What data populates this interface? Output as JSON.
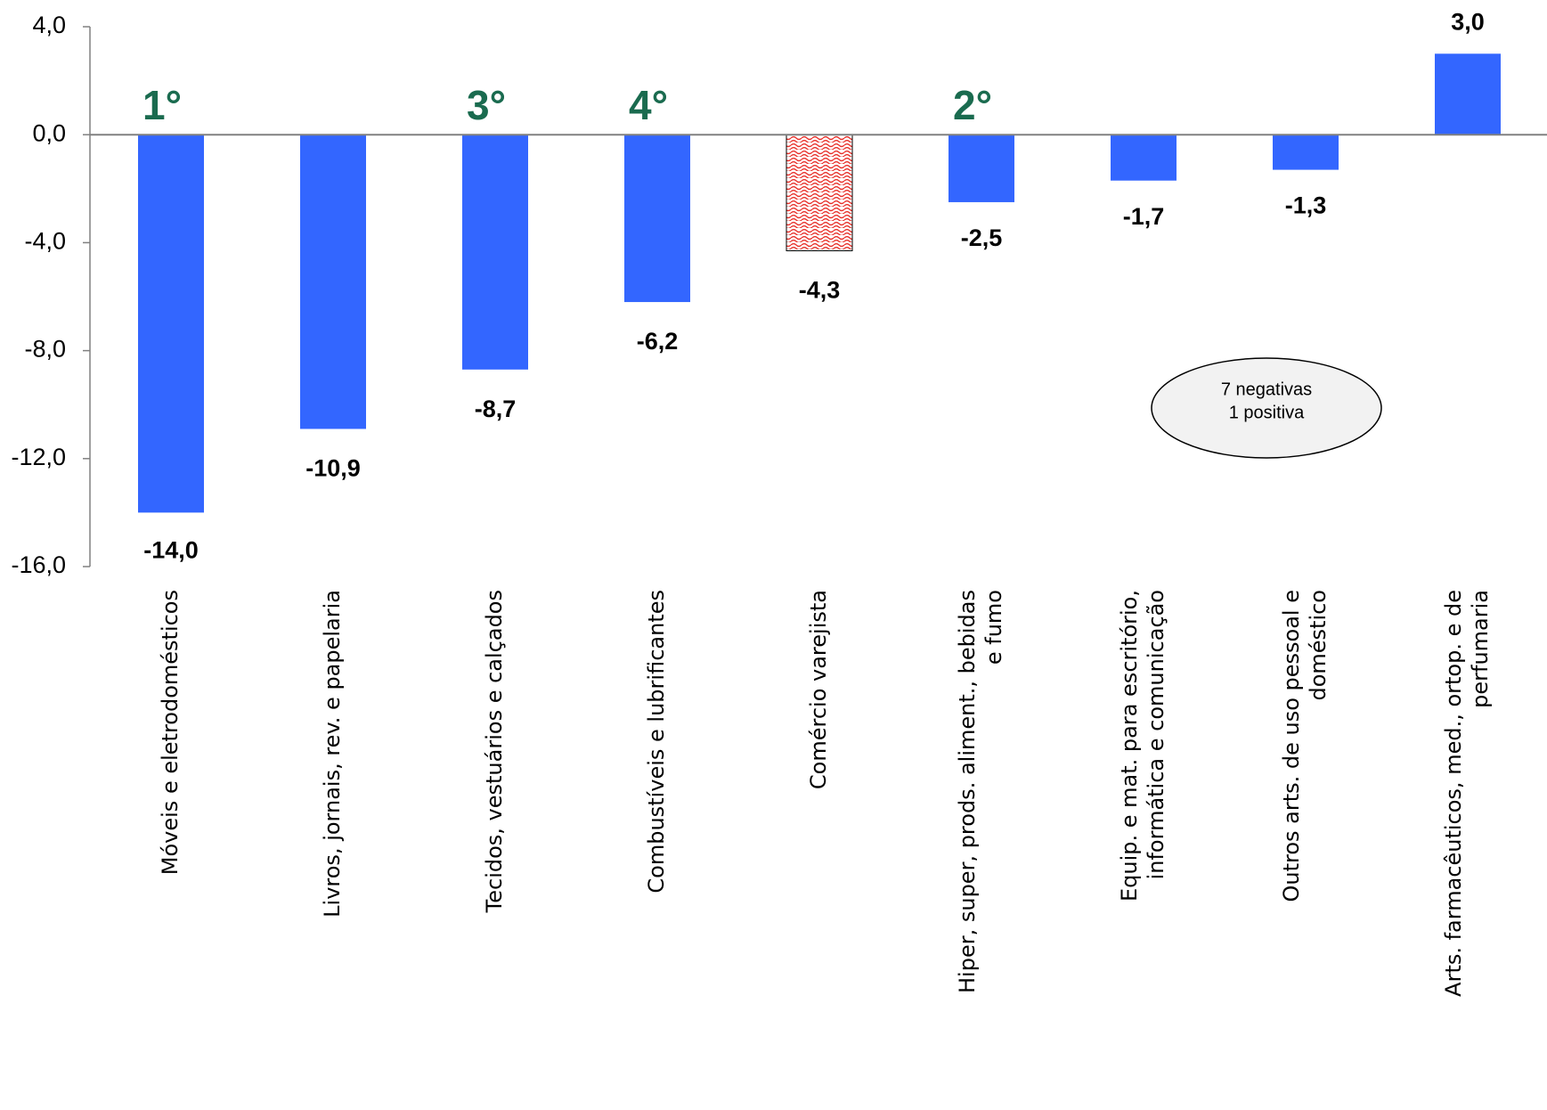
{
  "chart_data": {
    "type": "bar",
    "categories": [
      "Móveis e eletrodomésticos",
      "Livros, jornais, rev. e papelaria",
      "Tecidos, vestuários e calçados",
      "Combustíveis e lubrificantes",
      "Comércio varejista",
      "Hiper, super, prods. aliment., bebidas e fumo",
      "Equip. e mat. para escritório, informática e comunicação",
      "Outros arts. de uso pessoal e doméstico",
      "Arts. farmacêuticos, med., ortop. e de perfumaria"
    ],
    "category_lines": [
      [
        "Móveis e eletrodomésticos"
      ],
      [
        "Livros, jornais, rev. e papelaria"
      ],
      [
        "Tecidos, vestuários e calçados"
      ],
      [
        "Combustíveis e lubrificantes"
      ],
      [
        "Comércio varejista"
      ],
      [
        "Hiper, super, prods. aliment., bebidas",
        "e fumo"
      ],
      [
        "Equip. e mat. para escritório,",
        "informática e comunicação"
      ],
      [
        "Outros arts. de uso pessoal e",
        "doméstico"
      ],
      [
        "Arts. farmacêuticos, med., ortop. e de",
        "perfumaria"
      ]
    ],
    "values": [
      -14.0,
      -10.9,
      -8.7,
      -6.2,
      -4.3,
      -2.5,
      -1.7,
      -1.3,
      3.0
    ],
    "value_labels": [
      "-14,0",
      "-10,9",
      "-8,7",
      "-6,2",
      "-4,3",
      "-2,5",
      "-1,7",
      "-1,3",
      "3,0"
    ],
    "rank_labels": [
      "1°",
      "",
      "3°",
      "4°",
      "",
      "2°",
      "",
      "",
      ""
    ],
    "highlight_index": 4,
    "ylim": [
      -16,
      4
    ],
    "y_ticks": [
      4,
      0,
      -4,
      -8,
      -12,
      -16
    ],
    "y_tick_labels": [
      "4,0",
      "0,0",
      "-4,0",
      "-8,0",
      "-12,0",
      "-16,0"
    ],
    "grid": false,
    "colors": {
      "bar": "#3366FF",
      "highlight_bar_pattern": "#E8302A",
      "rank": "#1A6B4F",
      "axis": "#808080"
    },
    "annotation": {
      "lines": [
        "7 negativas",
        "1 positiva"
      ]
    }
  }
}
